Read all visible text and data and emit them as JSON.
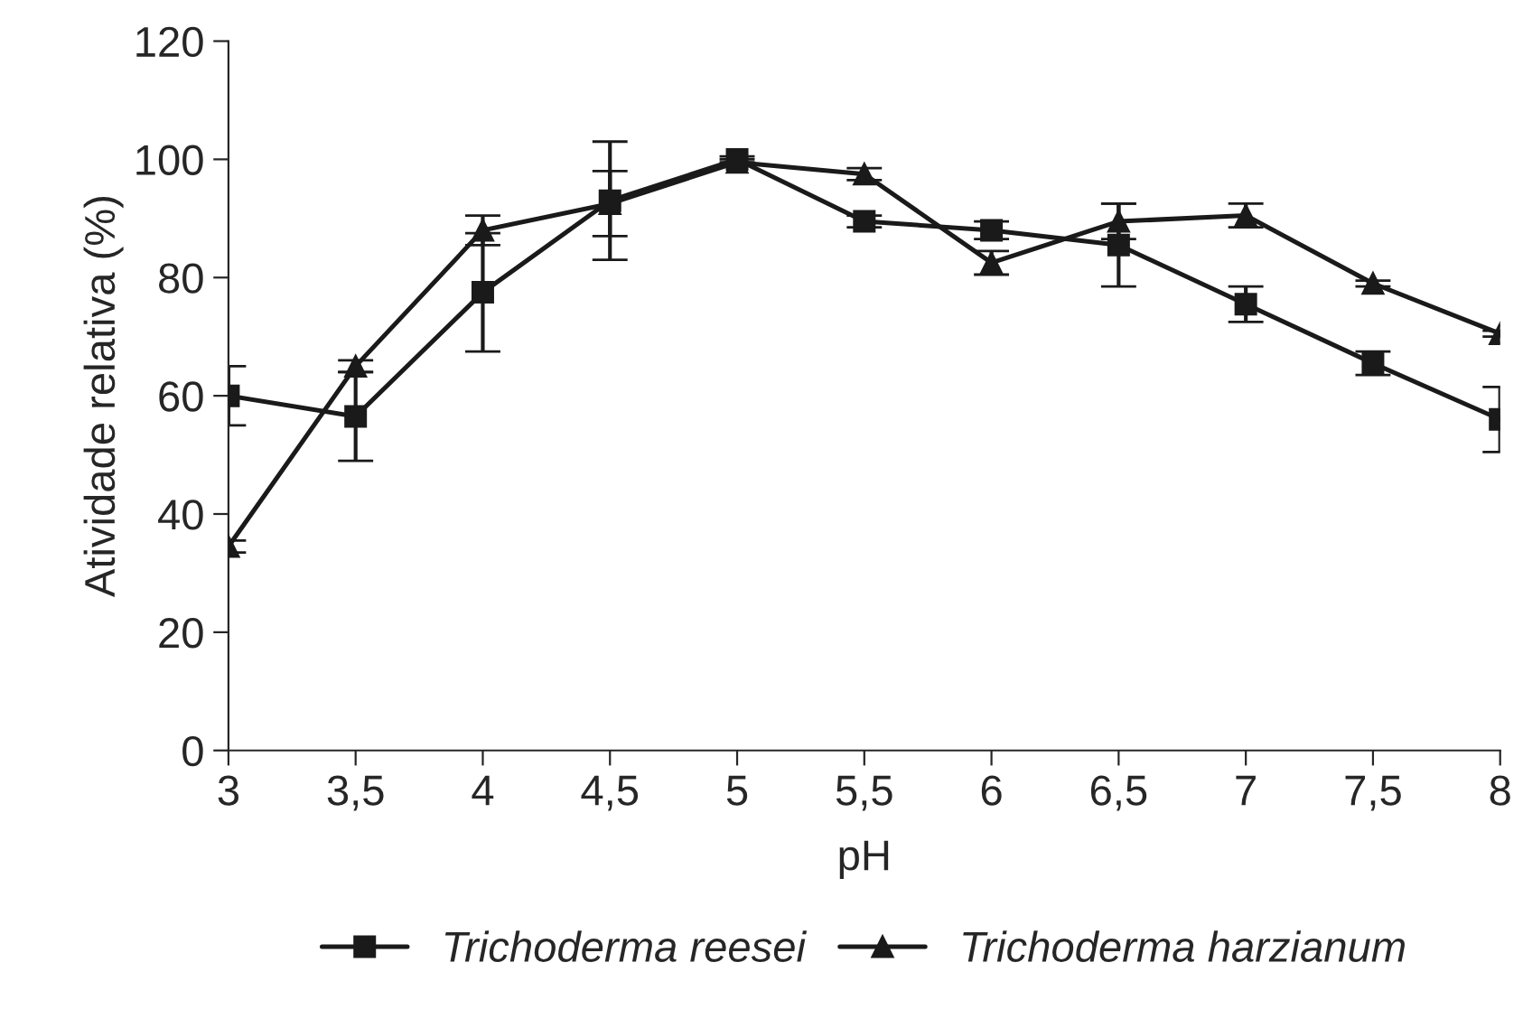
{
  "chart_data": {
    "type": "line",
    "xlabel": "pH",
    "ylabel": "Atividade relativa (%)",
    "categories": [
      "3",
      "3,5",
      "4",
      "4,5",
      "5",
      "5,5",
      "6",
      "6,5",
      "7",
      "7,5",
      "8"
    ],
    "series": [
      {
        "name": "Trichoderma reesei",
        "color": "#1a1a1a",
        "marker": "square",
        "values": [
          60,
          56.5,
          77.5,
          93,
          100,
          89.5,
          88,
          85.5,
          75.5,
          65.5,
          56
        ],
        "errors": [
          5,
          7.5,
          10,
          10,
          0.5,
          1,
          1.5,
          7,
          3,
          2,
          5.5
        ]
      },
      {
        "name": "Trichoderma harzianum",
        "color": "#1a1a1a",
        "marker": "triangle",
        "values": [
          34.5,
          65,
          88,
          92.5,
          99.5,
          97.5,
          82.5,
          89.5,
          90.5,
          79,
          70.5
        ],
        "errors": [
          1,
          1,
          2.5,
          5.5,
          0.5,
          1,
          2,
          3,
          2,
          0.5,
          0.5
        ]
      }
    ],
    "ylim": [
      0,
      120
    ],
    "yticks": [
      0,
      20,
      40,
      60,
      80,
      100,
      120
    ],
    "grid": false,
    "legend": "bottom",
    "line_style": "solid"
  }
}
